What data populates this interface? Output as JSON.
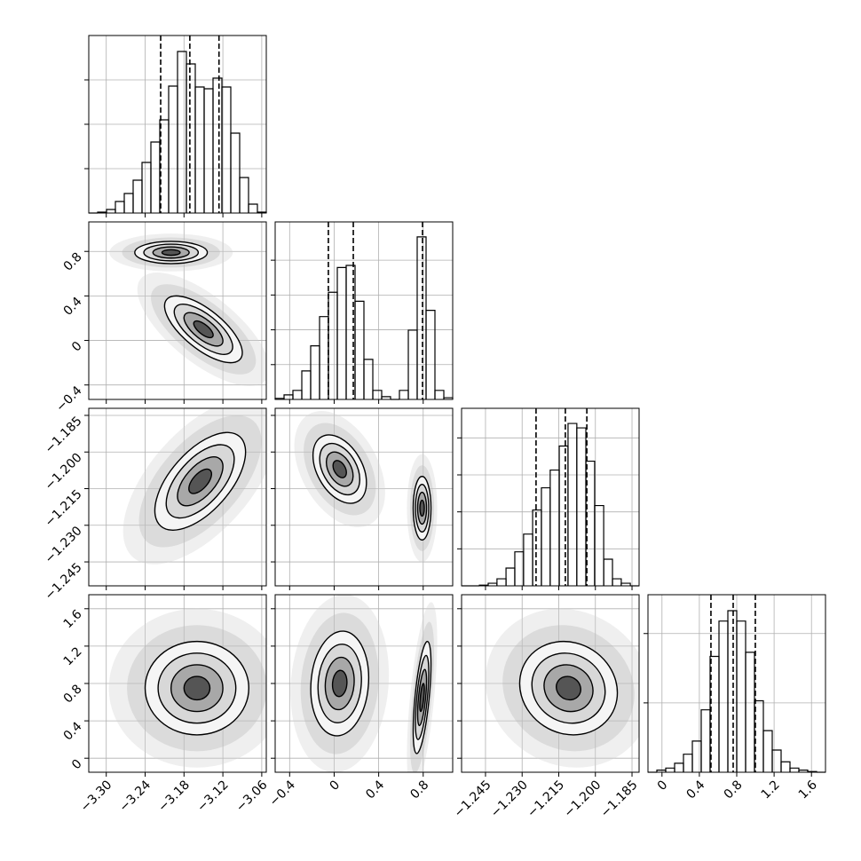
{
  "chart_data": {
    "type": "corner",
    "color": "#000000",
    "grid": true,
    "parameters": [
      {
        "lim": [
          -3.327,
          -3.053
        ],
        "ticks": [
          {
            "value": -3.3,
            "label": "−3.30"
          },
          {
            "value": -3.24,
            "label": "−3.24"
          },
          {
            "value": -3.18,
            "label": "−3.18"
          },
          {
            "value": -3.12,
            "label": "−3.12"
          },
          {
            "value": -3.06,
            "label": "−3.06"
          }
        ],
        "hist": {
          "bins": [
            -3.327,
            -3.3133,
            -3.2996,
            -3.2859,
            -3.2722,
            -3.2585,
            -3.2448,
            -3.2311,
            -3.2174,
            -3.2037,
            -3.19,
            -3.1763,
            -3.1626,
            -3.1489,
            -3.1352,
            -3.1215,
            -3.1078,
            -3.0941,
            -3.0804,
            -3.0667,
            -3.053
          ],
          "values": [
            0,
            0.02,
            0.08,
            0.26,
            0.44,
            0.74,
            1.14,
            1.6,
            2.1,
            2.86,
            3.64,
            3.36,
            2.84,
            2.8,
            3.04,
            2.84,
            1.8,
            0.8,
            0.2,
            0.02
          ],
          "ylim": [
            0,
            4
          ],
          "yticks": [
            1,
            2,
            3
          ],
          "quantiles": [
            -3.216,
            -3.171,
            -3.126
          ]
        },
        "pairs": []
      },
      {
        "lim": [
          -0.53,
          1.065
        ],
        "ticks": [
          {
            "value": -0.4,
            "label": "−0.4"
          },
          0.0,
          0.4,
          0.8
        ],
        "hist": {
          "bins": [
            -0.53,
            -0.4502,
            -0.3705,
            -0.2907,
            -0.211,
            -0.1312,
            -0.0515,
            0.0283,
            0.108,
            0.1878,
            0.2675,
            0.3473,
            0.427,
            0.5068,
            0.5865,
            0.6663,
            0.746,
            0.8258,
            0.9055,
            0.9853,
            1.065
          ],
          "values": [
            0.03,
            0.13,
            0.26,
            0.82,
            1.54,
            2.38,
            3.08,
            3.79,
            3.85,
            2.82,
            1.15,
            0.26,
            0.08,
            0,
            0.26,
            1.99,
            4.67,
            2.56,
            0.26,
            0.05
          ],
          "ylim": [
            0,
            5.1
          ],
          "yticks": [
            1,
            2,
            3,
            4
          ],
          "quantiles": [
            -0.052,
            0.172,
            0.794
          ]
        },
        "pairs": [
          [
            {
              "x": -3.2,
              "y": 0.79,
              "sx": 0.028,
              "sy": 0.05,
              "rho": 0
            },
            {
              "x": -3.15,
              "y": 0.1,
              "sx": 0.03,
              "sy": 0.15,
              "rho": -0.7
            }
          ]
        ]
      },
      {
        "lim": [
          -1.2548,
          -1.1821
        ],
        "ticks": [
          {
            "value": -1.245,
            "label": "−1.245"
          },
          {
            "value": -1.23,
            "label": "−1.230"
          },
          {
            "value": -1.215,
            "label": "−1.215"
          },
          {
            "value": -1.2,
            "label": "−1.200"
          },
          {
            "value": -1.185,
            "label": "−1.185"
          }
        ],
        "hist": {
          "bins": [
            -1.2548,
            -1.2512,
            -1.2475,
            -1.2439,
            -1.2403,
            -1.2366,
            -1.233,
            -1.2294,
            -1.2257,
            -1.2221,
            -1.2185,
            -1.2148,
            -1.2112,
            -1.2076,
            -1.2039,
            -1.2003,
            -1.1966,
            -1.193,
            -1.1894,
            -1.1857,
            -1.1821
          ],
          "values": [
            0,
            0,
            0.02,
            0.07,
            0.19,
            0.48,
            0.92,
            1.4,
            2.05,
            2.65,
            3.13,
            3.78,
            4.39,
            4.27,
            3.37,
            2.17,
            0.72,
            0.19,
            0.07,
            0
          ],
          "ylim": [
            0,
            4.8
          ],
          "yticks": [
            1,
            2,
            3,
            4
          ],
          "quantiles": [
            -1.2243,
            -1.2123,
            -1.2035
          ]
        },
        "pairs": [
          [
            {
              "x": -3.155,
              "y": -1.212,
              "sx": 0.035,
              "sy": 0.01,
              "rho": 0.6
            }
          ],
          [
            {
              "x": 0.05,
              "y": -1.207,
              "sx": 0.12,
              "sy": 0.007,
              "rho": -0.4
            },
            {
              "x": 0.79,
              "y": -1.223,
              "sx": 0.04,
              "sy": 0.0065,
              "rho": 0
            }
          ]
        ]
      },
      {
        "lim": [
          -0.15,
          1.75
        ],
        "ticks": [
          0.0,
          0.4,
          0.8,
          1.2,
          1.6
        ],
        "hist": {
          "bins": [
            -0.15,
            -0.055,
            0.04,
            0.135,
            0.23,
            0.325,
            0.42,
            0.515,
            0.61,
            0.705,
            0.8,
            0.895,
            0.99,
            1.085,
            1.18,
            1.275,
            1.37,
            1.465,
            1.56,
            1.655,
            1.75
          ],
          "values": [
            0,
            0.03,
            0.06,
            0.13,
            0.26,
            0.45,
            0.9,
            1.67,
            2.18,
            2.33,
            2.18,
            1.73,
            1.03,
            0.6,
            0.32,
            0.15,
            0.06,
            0.03,
            0.01,
            0
          ],
          "ylim": [
            0,
            2.56
          ],
          "yticks": [
            1,
            2
          ],
          "quantiles": [
            0.524,
            0.762,
            0.999
          ]
        },
        "pairs": [
          [
            {
              "x": -3.16,
              "y": 0.75,
              "sx": 0.04,
              "sy": 0.25,
              "rho": 0
            }
          ],
          [
            {
              "x": 0.05,
              "y": 0.8,
              "sx": 0.13,
              "sy": 0.28,
              "rho": 0.1
            },
            {
              "x": 0.79,
              "y": 0.65,
              "sx": 0.04,
              "sy": 0.3,
              "rho": 0.6
            }
          ],
          [
            {
              "x": -1.211,
              "y": 0.75,
              "sx": 0.01,
              "sy": 0.25,
              "rho": -0.1
            }
          ]
        ]
      }
    ]
  }
}
